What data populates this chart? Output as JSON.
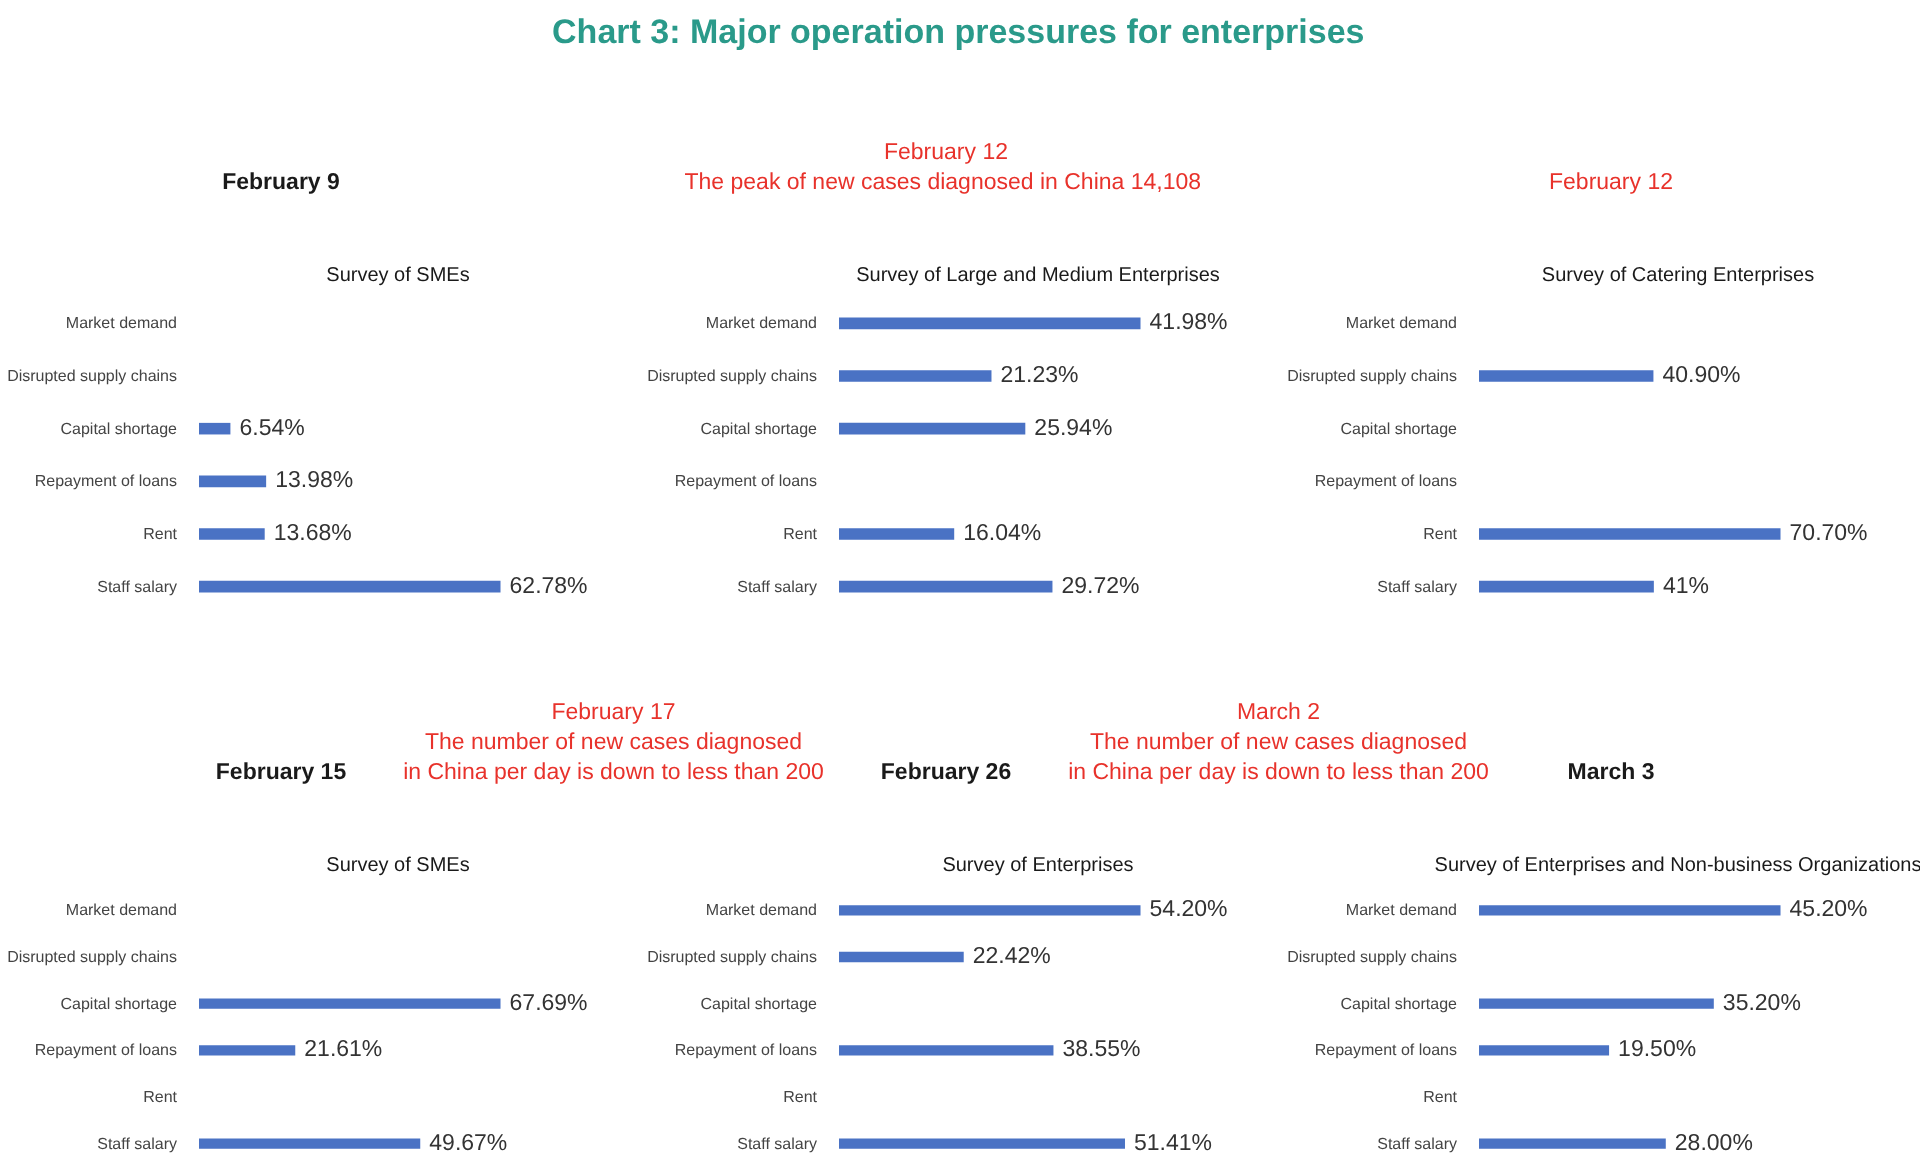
{
  "chart_data": [
    {
      "type": "other",
      "title": "Chart 3:  Major operation pressures for enterprises",
      "annotations": [
        "February 9",
        "February 12\nThe peak of new cases diagnosed in China  14,108",
        "February 12"
      ],
      "colors": [
        "#1a1a1a",
        "#e8322b",
        "#e8322b"
      ]
    },
    {
      "type": "bar",
      "orientation": "horizontal",
      "title": "Survey of SMEs",
      "categories": [
        "Market demand",
        "Disrupted supply chains",
        "Capital shortage",
        "Repayment of loans",
        "Rent",
        "Staff salary"
      ],
      "values": [
        null,
        null,
        6.54,
        13.98,
        13.68,
        62.78
      ],
      "value_labels": [
        null,
        null,
        "6.54%",
        "13.98%",
        "13.68%",
        "62.78%"
      ],
      "color": "#4a72c4"
    },
    {
      "type": "bar",
      "orientation": "horizontal",
      "title": "Survey of Large and Medium Enterprises",
      "categories": [
        "Market demand",
        "Disrupted supply chains",
        "Capital shortage",
        "Repayment of loans",
        "Rent",
        "Staff salary"
      ],
      "values": [
        41.98,
        21.23,
        25.94,
        null,
        16.04,
        29.72
      ],
      "value_labels": [
        "41.98%",
        "21.23%",
        "25.94%",
        null,
        "16.04%",
        "29.72%"
      ],
      "color": "#4a72c4"
    },
    {
      "type": "bar",
      "orientation": "horizontal",
      "title": "Survey of Catering Enterprises",
      "categories": [
        "Market demand",
        "Disrupted supply chains",
        "Capital shortage",
        "Repayment of loans",
        "Rent",
        "Staff salary"
      ],
      "values": [
        null,
        40.9,
        null,
        null,
        70.7,
        41
      ],
      "value_labels": [
        null,
        "40.90%",
        null,
        null,
        "70.70%",
        "41%"
      ],
      "color": "#4a72c4"
    },
    {
      "type": "other",
      "annotations": [
        "February 15",
        "February 17\nThe number of new cases diagnosed\nin China per day is down to less than 200",
        "February 26",
        "March 2\nThe number of new cases diagnosed\nin China per day is down to less than 200",
        "March 3"
      ],
      "colors": [
        "#1a1a1a",
        "#e8322b",
        "#1a1a1a",
        "#e8322b",
        "#1a1a1a"
      ]
    },
    {
      "type": "bar",
      "orientation": "horizontal",
      "title": "Survey of SMEs",
      "categories": [
        "Market demand",
        "Disrupted supply chains",
        "Capital shortage",
        "Repayment of loans",
        "Rent",
        "Staff salary"
      ],
      "values": [
        null,
        null,
        67.69,
        21.61,
        null,
        49.67
      ],
      "value_labels": [
        null,
        null,
        "67.69%",
        "21.61%",
        null,
        "49.67%"
      ],
      "color": "#4a72c4"
    },
    {
      "type": "bar",
      "orientation": "horizontal",
      "title": "Survey of Enterprises",
      "categories": [
        "Market demand",
        "Disrupted supply chains",
        "Capital shortage",
        "Repayment of loans",
        "Rent",
        "Staff salary"
      ],
      "values": [
        54.2,
        22.42,
        null,
        38.55,
        null,
        51.41
      ],
      "value_labels": [
        "54.20%",
        "22.42%",
        null,
        "38.55%",
        null,
        "51.41%"
      ],
      "color": "#4a72c4"
    },
    {
      "type": "bar",
      "orientation": "horizontal",
      "title": "Survey of Enterprises and Non-business Organizations",
      "categories": [
        "Market demand",
        "Disrupted supply chains",
        "Capital shortage",
        "Repayment of loans",
        "Rent",
        "Staff salary"
      ],
      "values": [
        45.2,
        null,
        35.2,
        19.5,
        null,
        28.0
      ],
      "value_labels": [
        "45.20%",
        null,
        "35.20%",
        "19.50%",
        null,
        "28.00%"
      ],
      "color": "#4a72c4"
    }
  ]
}
